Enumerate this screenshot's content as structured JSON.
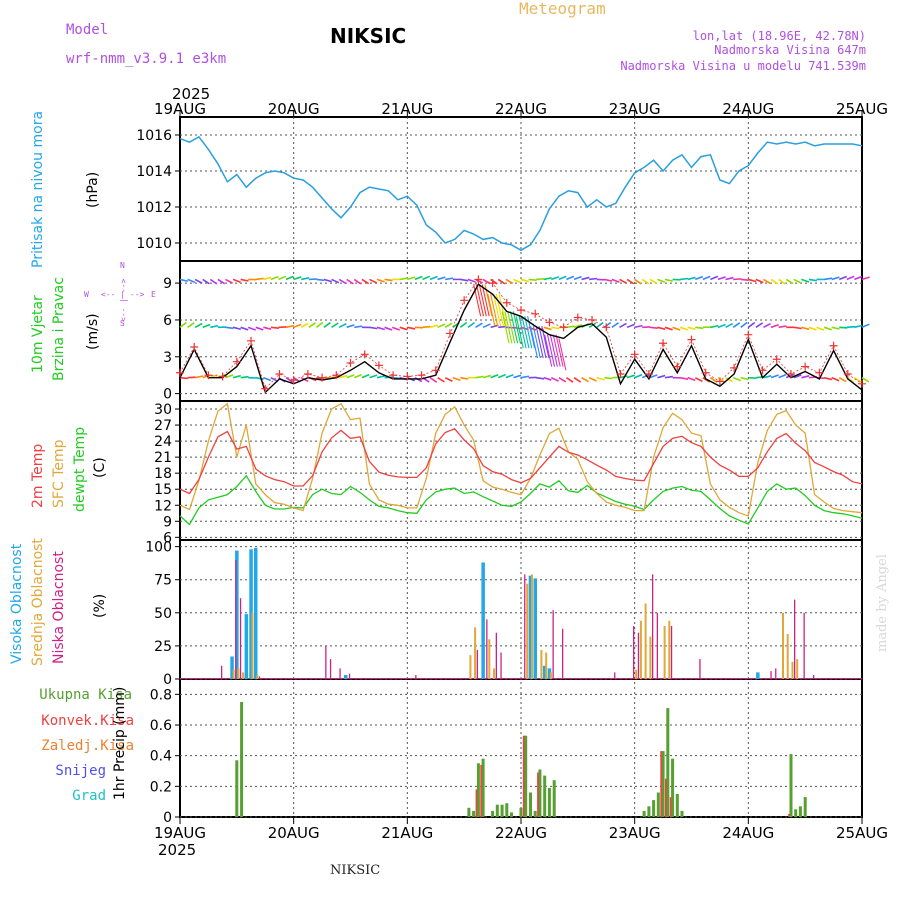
{
  "header": {
    "model_label": "Model",
    "model_name": "wrf-nmm_v3.9.1 e3km",
    "station": "NIKSIC",
    "meteogram": "Meteogram",
    "lonlat": "lon,lat (18.96E, 42.78N)",
    "altitude": "Nadmorska Visina 647m",
    "model_altitude": "Nadmorska Visina u modelu 741.539m",
    "footer_station": "NIKSIC",
    "credit": "made by Angel"
  },
  "time_axis": {
    "year": "2025",
    "ticks": [
      "19AUG",
      "20AUG",
      "21AUG",
      "22AUG",
      "23AUG",
      "24AUG",
      "25AUG"
    ],
    "hours_total": 144
  },
  "colors": {
    "pressure": "#2a9fe0",
    "t2m": "#f04040",
    "sfc": "#e0a838",
    "dew": "#22cc22",
    "high_cloud": "#22a8e8",
    "mid_cloud": "#e0a838",
    "low_cloud": "#cc2288",
    "total_precip": "#55a030",
    "conv_precip": "#f04040",
    "ice_precip": "#f08030",
    "snow": "#5050ee",
    "hail": "#20c0c0",
    "wind_line": "#000000",
    "gust": "#ee3333",
    "meteogram": "#e8b860",
    "purple": "#b050e0"
  },
  "panels": {
    "pressure": {
      "label": "Pritisak na nivou mora",
      "unit": "(hPa)",
      "ticks": [
        "1010",
        "1012",
        "1014",
        "1016"
      ]
    },
    "wind": {
      "label1": "10m Vjetar",
      "label2": "Brzina i Pravac",
      "unit": "(m/s)",
      "ticks": [
        "0",
        "3",
        "6",
        "9"
      ],
      "compass_w": "W",
      "compass_e": "E",
      "compass_arrow": "<-- | -->",
      "compass_n": "N",
      "compass_s": "S"
    },
    "temp": {
      "label1": "2m Temp",
      "label2": "SFC Temp",
      "label3": "dewpt Temp",
      "unit": "(C)",
      "ticks": [
        "6",
        "9",
        "12",
        "15",
        "18",
        "21",
        "24",
        "27",
        "30"
      ]
    },
    "cloud": {
      "label1": "Visoka Oblacnost",
      "label2": "Srednja Oblacnost",
      "label3": "Niska Oblacnost",
      "unit": "(%)",
      "ticks": [
        "0",
        "25",
        "50",
        "75",
        "100"
      ]
    },
    "precip": {
      "label_total": "Ukupna Kisa",
      "label_conv": "Konvek.Kisa",
      "label_ice": "Zaledj.Kisa",
      "label_snow": "Snijeg",
      "label_hail": "Grad",
      "unit": "1hr Precip (mm)",
      "ticks": [
        "0",
        "0.2",
        "0.4",
        "0.6",
        "0.8"
      ]
    }
  },
  "chart_data": [
    {
      "type": "line",
      "title": "Pritisak na nivou mora",
      "ylabel": "hPa",
      "ylim": [
        1009,
        1017
      ],
      "x_hours": [
        0,
        2,
        4,
        6,
        8,
        10,
        12,
        14,
        16,
        18,
        20,
        22,
        24,
        26,
        28,
        30,
        32,
        34,
        36,
        38,
        40,
        42,
        44,
        46,
        48,
        50,
        52,
        54,
        56,
        58,
        60,
        62,
        64,
        66,
        68,
        70,
        72,
        74,
        76,
        78,
        80,
        82,
        84,
        86,
        88,
        90,
        92,
        94,
        96,
        98,
        100,
        102,
        104,
        106,
        108,
        110,
        112,
        114,
        116,
        118,
        120,
        122,
        124,
        126,
        128,
        130,
        132,
        134,
        136,
        138,
        140,
        142,
        144
      ],
      "values": [
        1015.8,
        1015.6,
        1015.9,
        1015.2,
        1014.4,
        1013.4,
        1013.8,
        1013.1,
        1013.6,
        1013.9,
        1014.0,
        1013.9,
        1013.6,
        1013.5,
        1013.1,
        1012.5,
        1011.9,
        1011.4,
        1012.0,
        1012.8,
        1013.1,
        1013.0,
        1012.9,
        1012.4,
        1012.6,
        1012.1,
        1011.0,
        1010.6,
        1010.0,
        1010.2,
        1010.7,
        1010.5,
        1010.2,
        1010.3,
        1010.0,
        1009.9,
        1009.6,
        1009.9,
        1010.7,
        1011.9,
        1012.6,
        1012.9,
        1012.8,
        1012.0,
        1012.4,
        1012.0,
        1012.2,
        1013.1,
        1013.9,
        1014.2,
        1014.6,
        1014.0,
        1014.6,
        1014.9,
        1014.2,
        1014.8,
        1014.9,
        1013.5,
        1013.3,
        1014.0,
        1014.3,
        1015.0,
        1015.6,
        1015.5,
        1015.6,
        1015.5,
        1015.6,
        1015.4,
        1015.5,
        1015.5,
        1015.5,
        1015.5,
        1015.4
      ]
    },
    {
      "type": "line",
      "title": "10m Vjetar Brzina i Pravac",
      "ylabel": "m/s",
      "ylim": [
        -0.6,
        10.8
      ],
      "x_hours": [
        0,
        3,
        6,
        9,
        12,
        15,
        18,
        21,
        24,
        27,
        30,
        33,
        36,
        39,
        42,
        45,
        48,
        51,
        54,
        57,
        60,
        63,
        66,
        69,
        72,
        75,
        78,
        81,
        84,
        87,
        90,
        93,
        96,
        99,
        102,
        105,
        108,
        111,
        114,
        117,
        120,
        123,
        126,
        129,
        132,
        135,
        138,
        141,
        144
      ],
      "series": [
        {
          "name": "wind speed",
          "values": [
            1.3,
            3.6,
            1.3,
            1.3,
            2.2,
            3.9,
            0.1,
            1.2,
            0.8,
            1.3,
            1.1,
            1.3,
            1.9,
            2.6,
            1.7,
            1.2,
            1.2,
            1.2,
            1.5,
            4.2,
            6.8,
            8.9,
            8.1,
            6.7,
            6.3,
            5.5,
            4.8,
            4.5,
            5.4,
            5.7,
            4.6,
            0.8,
            2.8,
            1.2,
            3.6,
            1.7,
            3.9,
            1.2,
            0.6,
            1.6,
            4.4,
            1.3,
            2.4,
            1.3,
            1.8,
            1.2,
            3.5,
            1.2,
            0.3
          ]
        },
        {
          "name": "gust",
          "values": [
            1.7,
            3.8,
            1.5,
            1.4,
            2.6,
            4.3,
            0.4,
            1.6,
            1.1,
            1.6,
            1.3,
            1.5,
            2.5,
            3.2,
            2.3,
            1.5,
            1.4,
            1.5,
            1.9,
            4.9,
            7.6,
            9.3,
            9.0,
            7.4,
            6.8,
            6.5,
            5.8,
            5.4,
            6.2,
            6.0,
            5.4,
            1.6,
            3.2,
            1.6,
            4.1,
            2.2,
            4.4,
            1.7,
            1.0,
            2.1,
            4.8,
            1.9,
            2.8,
            1.6,
            2.2,
            1.7,
            3.9,
            1.6,
            0.8
          ]
        }
      ]
    },
    {
      "type": "line",
      "title": "2m Temp / SFC Temp / dewpt Temp",
      "ylabel": "C",
      "ylim": [
        5.5,
        31.5
      ],
      "x_hours": [
        0,
        2,
        4,
        6,
        8,
        10,
        12,
        14,
        16,
        18,
        20,
        22,
        24,
        26,
        28,
        30,
        32,
        34,
        36,
        38,
        40,
        42,
        44,
        46,
        48,
        50,
        52,
        54,
        56,
        58,
        60,
        62,
        64,
        66,
        68,
        70,
        72,
        74,
        76,
        78,
        80,
        82,
        84,
        86,
        88,
        90,
        92,
        94,
        96,
        98,
        100,
        102,
        104,
        106,
        108,
        110,
        112,
        114,
        116,
        118,
        120,
        122,
        124,
        126,
        128,
        130,
        132,
        134,
        136,
        138,
        140,
        142,
        144
      ],
      "series": [
        {
          "name": "2m Temp",
          "values": [
            15,
            14.2,
            16.8,
            21,
            24.8,
            25.8,
            22.5,
            23,
            18.8,
            17.5,
            16.8,
            16.4,
            15.6,
            15.6,
            17.5,
            22,
            24.6,
            26,
            24.5,
            24.8,
            20.2,
            18.2,
            17.6,
            17.3,
            17.2,
            17.2,
            19,
            23.5,
            25.6,
            26.3,
            24.2,
            22.6,
            19.4,
            18.3,
            17.8,
            16.8,
            16.2,
            17,
            19,
            21,
            23,
            21.9,
            21.4,
            20.5,
            19.5,
            18.6,
            17.4,
            17,
            16.7,
            16.6,
            19.8,
            23,
            24.5,
            24.9,
            23.7,
            23,
            21,
            19.5,
            18.6,
            17.4,
            17.4,
            19,
            22,
            24.5,
            25.4,
            23.6,
            22.2,
            20,
            19.2,
            18.3,
            17.6,
            16.4,
            16
          ]
        },
        {
          "name": "SFC Temp",
          "values": [
            12,
            11.2,
            16.6,
            24,
            29.6,
            31,
            21,
            27,
            16,
            14,
            12.5,
            12.2,
            11.5,
            11,
            17,
            25.5,
            30,
            31,
            28,
            28.3,
            16,
            13,
            12.2,
            12,
            11.5,
            11.5,
            17,
            25.5,
            29,
            30.4,
            27,
            24.2,
            16.6,
            15.4,
            15,
            14.4,
            14,
            17,
            21.4,
            25.4,
            26.4,
            22,
            20.6,
            16.4,
            14.2,
            12.6,
            12,
            11.6,
            11,
            11,
            21,
            26.5,
            29.2,
            28,
            25.5,
            25,
            16,
            13,
            11.6,
            10.6,
            10,
            20,
            26,
            29,
            29.7,
            27,
            25.5,
            14,
            12.6,
            11.4,
            11,
            10.8,
            10.6
          ]
        },
        {
          "name": "dewpt Temp",
          "values": [
            10,
            8.4,
            11.5,
            13,
            13.5,
            14,
            15.5,
            17.5,
            14.6,
            12,
            11.3,
            11.3,
            11.6,
            11.5,
            14,
            15,
            14.2,
            14,
            15.5,
            14.4,
            13,
            11.8,
            11.5,
            11,
            10.6,
            10.5,
            13,
            14.5,
            15,
            15.2,
            14.2,
            14.5,
            13.6,
            12.8,
            12,
            11.8,
            12.6,
            14.2,
            16,
            15.4,
            16.6,
            14.7,
            14.4,
            15.7,
            14.3,
            13.5,
            12.7,
            12.2,
            11.8,
            11.2,
            13,
            14.6,
            15.2,
            15.5,
            14.8,
            14.6,
            13,
            11.4,
            10,
            9.2,
            8.5,
            11.5,
            14.6,
            16,
            15,
            15.2,
            13.8,
            12,
            11,
            10.6,
            10.4,
            10,
            9.6
          ]
        }
      ]
    },
    {
      "type": "bar",
      "title": "Visoka / Srednja / Niska Oblacnost",
      "ylabel": "%",
      "ylim": [
        0,
        105
      ],
      "series": [
        {
          "name": "Visoka Oblacnost",
          "bars": [
            [
              11,
              17
            ],
            [
              12,
              97
            ],
            [
              14,
              49
            ],
            [
              15,
              98
            ],
            [
              16,
              99
            ],
            [
              35,
              3
            ],
            [
              64,
              88
            ],
            [
              74,
              78
            ],
            [
              75,
              76
            ],
            [
              77,
              10
            ],
            [
              78,
              8
            ],
            [
              122,
              5
            ]
          ]
        },
        {
          "name": "Srednja Oblacnost",
          "bars": [
            [
              11,
              7
            ],
            [
              12,
              8
            ],
            [
              13,
              5
            ],
            [
              15,
              50
            ],
            [
              16,
              3
            ],
            [
              61,
              18
            ],
            [
              62,
              39
            ],
            [
              65,
              30
            ],
            [
              66,
              8
            ],
            [
              73,
              72
            ],
            [
              74,
              79
            ],
            [
              76,
              22
            ],
            [
              77,
              20
            ],
            [
              78,
              5
            ],
            [
              96,
              7
            ],
            [
              97,
              44
            ],
            [
              98,
              57
            ],
            [
              99,
              32
            ],
            [
              102,
              40
            ],
            [
              103,
              44
            ],
            [
              127,
              50
            ],
            [
              128,
              34
            ],
            [
              129,
              13
            ],
            [
              130,
              15
            ]
          ]
        },
        {
          "name": "Niska Oblacnost",
          "bars": [
            [
              9,
              10
            ],
            [
              12,
              90
            ],
            [
              13,
              61
            ],
            [
              17,
              2
            ],
            [
              31,
              25
            ],
            [
              32,
              15
            ],
            [
              34,
              8
            ],
            [
              36,
              4
            ],
            [
              50,
              3
            ],
            [
              63,
              22
            ],
            [
              65,
              45
            ],
            [
              67,
              35
            ],
            [
              68,
              20
            ],
            [
              73,
              79
            ],
            [
              79,
              52
            ],
            [
              81,
              38
            ],
            [
              92,
              5
            ],
            [
              96,
              40
            ],
            [
              97,
              35
            ],
            [
              100,
              79
            ],
            [
              101,
              50
            ],
            [
              104,
              40
            ],
            [
              110,
              15
            ],
            [
              125,
              6
            ],
            [
              126,
              8
            ],
            [
              130,
              60
            ],
            [
              132,
              50
            ],
            [
              134,
              3
            ]
          ]
        }
      ]
    },
    {
      "type": "bar",
      "title": "1hr Precip",
      "ylabel": "mm",
      "ylim": [
        0,
        0.9
      ],
      "series": [
        {
          "name": "Ukupna Kisa",
          "bars": [
            [
              12,
              0.37
            ],
            [
              13,
              0.75
            ],
            [
              61,
              0.06
            ],
            [
              62,
              0.04
            ],
            [
              63,
              0.35
            ],
            [
              64,
              0.38
            ],
            [
              66,
              0.04
            ],
            [
              67,
              0.08
            ],
            [
              68,
              0.08
            ],
            [
              69,
              0.09
            ],
            [
              70,
              0.03
            ],
            [
              72,
              0.06
            ],
            [
              73,
              0.53
            ],
            [
              74,
              0.16
            ],
            [
              75,
              0.04
            ],
            [
              76,
              0.31
            ],
            [
              77,
              0.27
            ],
            [
              78,
              0.19
            ],
            [
              79,
              0.24
            ],
            [
              98,
              0.04
            ],
            [
              99,
              0.07
            ],
            [
              100,
              0.11
            ],
            [
              101,
              0.16
            ],
            [
              102,
              0.43
            ],
            [
              103,
              0.71
            ],
            [
              104,
              0.38
            ],
            [
              105,
              0.15
            ],
            [
              106,
              0.04
            ],
            [
              129,
              0.41
            ],
            [
              130,
              0.05
            ],
            [
              131,
              0.07
            ],
            [
              132,
              0.13
            ]
          ]
        },
        {
          "name": "Konvek.Kisa",
          "bars": [
            [
              63,
              0.18
            ],
            [
              64,
              0.34
            ],
            [
              73,
              0.53
            ],
            [
              76,
              0.29
            ],
            [
              102,
              0.43
            ],
            [
              103,
              0.25
            ],
            [
              104,
              0.13
            ],
            [
              129,
              0.02
            ]
          ]
        }
      ]
    }
  ]
}
